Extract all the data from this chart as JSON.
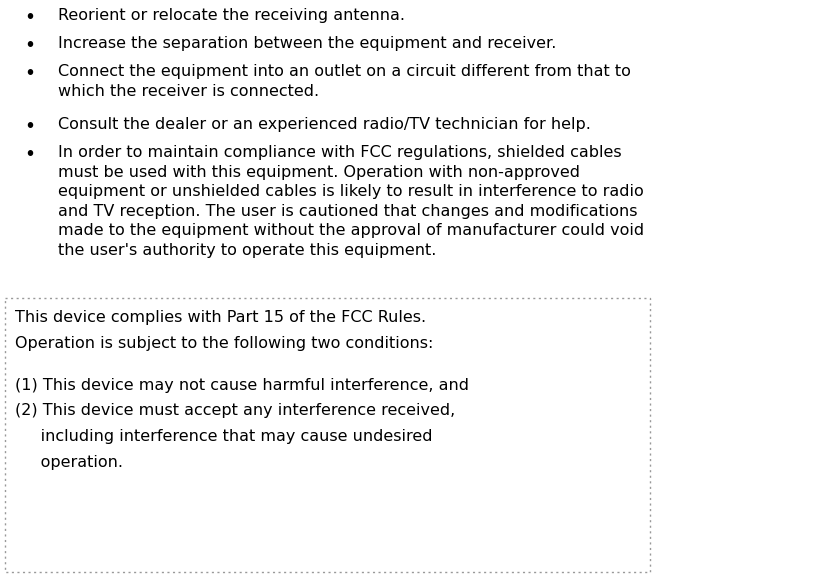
{
  "background_color": "#ffffff",
  "text_color": "#000000",
  "bullet_points": [
    "Reorient or relocate the receiving antenna.",
    "Increase the separation between the equipment and receiver.",
    "Connect the equipment into an outlet on a circuit different from that to\nwhich the receiver is connected.",
    "Consult the dealer or an experienced radio/TV technician for help.",
    "In order to maintain compliance with FCC regulations, shielded cables\nmust be used with this equipment. Operation with non-approved\nequipment or unshielded cables is likely to result in interference to radio\nand TV reception. The user is cautioned that changes and modifications\nmade to the equipment without the approval of manufacturer could void\nthe user's authority to operate this equipment."
  ],
  "box_lines": [
    "This device complies with Part 15 of the FCC Rules.",
    "Operation is subject to the following two conditions:",
    "",
    "(1) This device may not cause harmful interference, and",
    "(2) This device must accept any interference received,",
    "     including interference that may cause undesired",
    "     operation."
  ],
  "font_size": 11.5,
  "font_weight": "normal",
  "box_border_color": "#999999",
  "bullet_char": "•"
}
